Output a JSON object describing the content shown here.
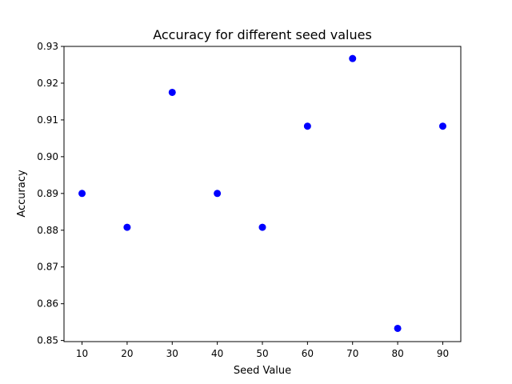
{
  "chart_data": {
    "type": "scatter",
    "title": "Accuracy for different seed values",
    "xlabel": "Seed Value",
    "ylabel": "Accuracy",
    "x": [
      10,
      20,
      30,
      40,
      50,
      60,
      70,
      80,
      90
    ],
    "y": [
      0.89,
      0.8808,
      0.9175,
      0.89,
      0.8808,
      0.9083,
      0.9267,
      0.8533,
      0.9083
    ],
    "xlim": [
      6,
      94
    ],
    "ylim": [
      0.8497,
      0.93
    ],
    "xticks": [
      10,
      20,
      30,
      40,
      50,
      60,
      70,
      80,
      90
    ],
    "xtick_labels": [
      "10",
      "20",
      "30",
      "40",
      "50",
      "60",
      "70",
      "80",
      "90"
    ],
    "yticks": [
      0.85,
      0.86,
      0.87,
      0.88,
      0.89,
      0.9,
      0.91,
      0.92,
      0.93
    ],
    "ytick_labels": [
      "0.85",
      "0.86",
      "0.87",
      "0.88",
      "0.89",
      "0.90",
      "0.91",
      "0.92",
      "0.93"
    ],
    "marker_color": "#0000ff",
    "grid": false,
    "legend": "none"
  }
}
